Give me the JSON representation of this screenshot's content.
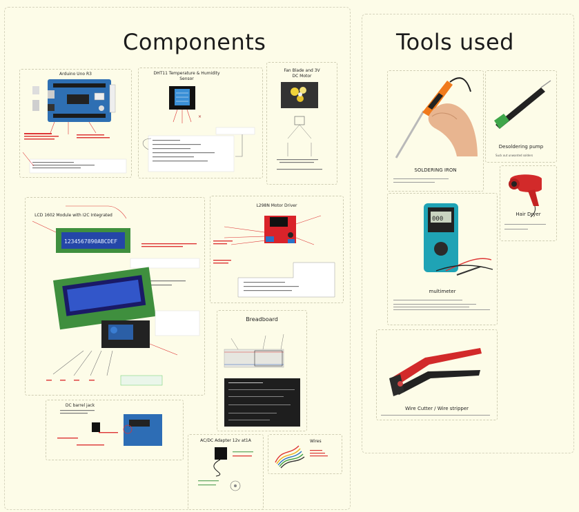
{
  "headings": {
    "components": "Components",
    "tools": "Tools used"
  },
  "components": {
    "arduino_uno": {
      "title": "Arduino Uno R3"
    },
    "dht11": {
      "title": "DHT11 Temperature & Humidity Sensor"
    },
    "fan": {
      "title": "Fan Blade and 3V DC Motor"
    },
    "lcd": {
      "title": "LCD 1602 Module with I2C Integrated",
      "screen_text": "1234567890ABCDEF"
    },
    "l298n": {
      "title": "L298N Motor Driver"
    },
    "breadboard": {
      "title": "Breadboard"
    },
    "barrel_jack": {
      "title": "DC barrel jack"
    },
    "adapter": {
      "title": "AC/DC Adapter 12v at1A"
    },
    "wires": {
      "title": "Wires"
    }
  },
  "tools": {
    "soldering_iron": {
      "label": "SOLDERING IRON"
    },
    "desoldering_pump": {
      "label": "Desoldering pump",
      "note": "Suck out unwanted solders"
    },
    "hair_dryer": {
      "label": "Hair Dryer"
    },
    "multimeter": {
      "label": "multimeter"
    },
    "wire_cutter": {
      "label": "Wire Cutter / Wire stripper"
    }
  },
  "colors": {
    "background": "#fdfce8",
    "card_border": "#cfcdb3",
    "annotation_red": "#d33333",
    "board_blue": "#1f5fa8",
    "l298n_red": "#d9232a",
    "lcd_green": "#3b8f3e",
    "tool_orange": "#ee7a1c"
  },
  "icons": [
    "soldering-iron-icon",
    "desoldering-pump-icon",
    "hair-dryer-icon",
    "multimeter-icon",
    "wire-stripper-icon",
    "arduino-board-icon",
    "sensor-icon",
    "fan-icon",
    "lcd-module-icon",
    "motor-driver-icon",
    "breadboard-icon",
    "barrel-jack-icon",
    "power-adapter-icon",
    "wires-icon"
  ]
}
